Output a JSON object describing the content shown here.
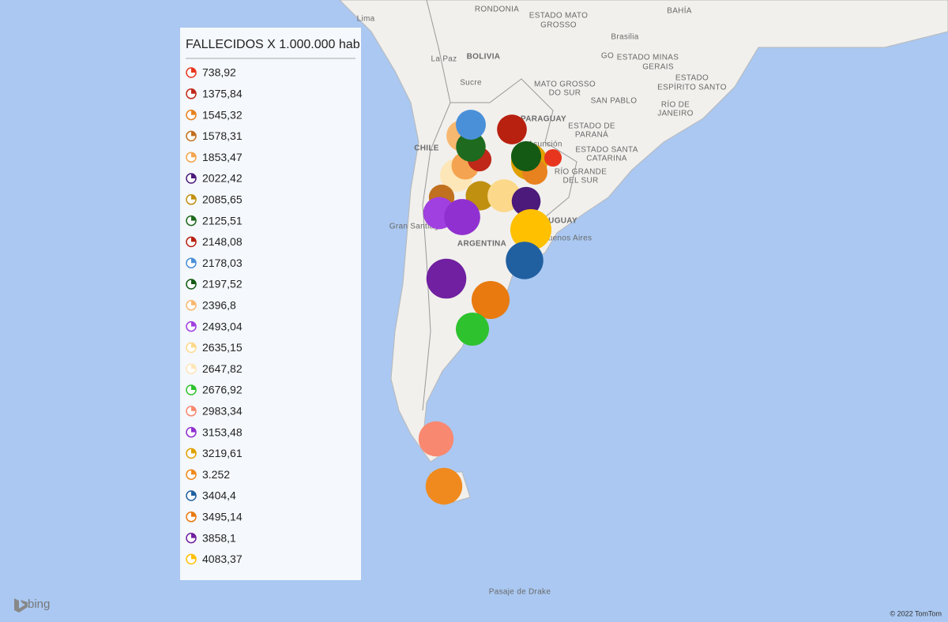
{
  "legend": {
    "title": "FALLECIDOS X 1.000.000 hab",
    "items": [
      {
        "label": "738,92",
        "value": 738.92,
        "color": "#e8361e"
      },
      {
        "label": "1375,84",
        "value": 1375.84,
        "color": "#c0281a"
      },
      {
        "label": "1545,32",
        "value": 1545.32,
        "color": "#e8821e"
      },
      {
        "label": "1578,31",
        "value": 1578.31,
        "color": "#c0701e"
      },
      {
        "label": "1853,47",
        "value": 1853.47,
        "color": "#f4a450"
      },
      {
        "label": "2022,42",
        "value": 2022.42,
        "color": "#4b1a7a"
      },
      {
        "label": "2085,65",
        "value": 2085.65,
        "color": "#c09010"
      },
      {
        "label": "2125,51",
        "value": 2125.51,
        "color": "#1e6a1e"
      },
      {
        "label": "2148,08",
        "value": 2148.08,
        "color": "#b82010"
      },
      {
        "label": "2178,03",
        "value": 2178.03,
        "color": "#4a90d9"
      },
      {
        "label": "2197,52",
        "value": 2197.52,
        "color": "#145a14"
      },
      {
        "label": "2396,8",
        "value": 2396.8,
        "color": "#f7b870"
      },
      {
        "label": "2493,04",
        "value": 2493.04,
        "color": "#a040e0"
      },
      {
        "label": "2635,15",
        "value": 2635.15,
        "color": "#fcd98a"
      },
      {
        "label": "2647,82",
        "value": 2647.82,
        "color": "#fde6b8"
      },
      {
        "label": "2676,92",
        "value": 2676.92,
        "color": "#2ec22e"
      },
      {
        "label": "2983,34",
        "value": 2983.34,
        "color": "#f88870"
      },
      {
        "label": "3153,48",
        "value": 3153.48,
        "color": "#9030d0"
      },
      {
        "label": "3219,61",
        "value": 3219.61,
        "color": "#e0a000"
      },
      {
        "label": "3.252",
        "value": 3252,
        "color": "#f08a1e"
      },
      {
        "label": "3404,4",
        "value": 3404.4,
        "color": "#2060a0"
      },
      {
        "label": "3495,14",
        "value": 3495.14,
        "color": "#e87a10"
      },
      {
        "label": "3858,1",
        "value": 3858.1,
        "color": "#7020a0"
      },
      {
        "label": "4083,37",
        "value": 4083.37,
        "color": "#ffc000"
      }
    ]
  },
  "map_labels": [
    "Lima",
    "RONDONIA",
    "ESTADO MATO",
    "GROSSO",
    "BAHÍA",
    "Brasilia",
    "GO",
    "ESTADO MINAS",
    "GERAIS",
    "ESTADO",
    "ESPÍRITO SANTO",
    "La Paz",
    "BOLIVIA",
    "Sucre",
    "MATO GROSSO",
    "DO SUR",
    "SAN PABLO",
    "RÍO DE",
    "JANEIRO",
    "ESTADO DE",
    "PARANÁ",
    "PARAGUAY",
    "CHILE",
    "Asunción",
    "ESTADO SANTA",
    "CATARINA",
    "RÍO GRANDE",
    "DEL SUR",
    "URUGUAY",
    "Gran Santiago",
    "Buenos Aires",
    "ARGENTINA",
    "Pasaje de Drake"
  ],
  "logo": "bing",
  "copyright": "© 2022 TomTom"
}
